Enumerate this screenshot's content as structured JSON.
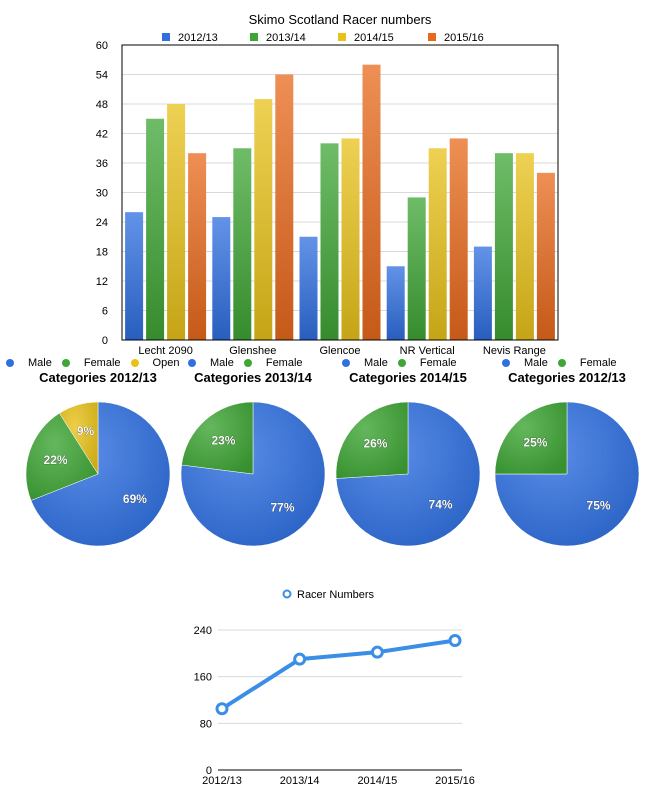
{
  "chart_data": [
    {
      "type": "bar",
      "title": "Skimo Scotland Racer numbers",
      "categories": [
        "Lecht 2090",
        "Glenshee",
        "Glencoe",
        "NR Vertical",
        "Nevis Range"
      ],
      "series": [
        {
          "name": "2012/13",
          "color": "#2f6fe0",
          "values": [
            26,
            25,
            21,
            15,
            19
          ]
        },
        {
          "name": "2013/14",
          "color": "#3fa535",
          "values": [
            45,
            39,
            40,
            29,
            38
          ]
        },
        {
          "name": "2014/15",
          "color": "#e8c21a",
          "values": [
            48,
            49,
            41,
            39,
            38
          ]
        },
        {
          "name": "2015/16",
          "color": "#e8691c",
          "values": [
            38,
            54,
            56,
            41,
            34
          ]
        }
      ],
      "ylim": [
        0,
        60
      ],
      "yticks": [
        "0",
        "6",
        "12",
        "18",
        "24",
        "30",
        "36",
        "42",
        "48",
        "54",
        "60"
      ],
      "legend": "top"
    },
    {
      "type": "pie",
      "title": "Categories 2012/13",
      "legend": [
        {
          "label": "Male",
          "color": "#2f6fe0"
        },
        {
          "label": "Female",
          "color": "#3fa535"
        },
        {
          "label": "Open",
          "color": "#e8c21a"
        }
      ],
      "slices": [
        {
          "label": "Male",
          "value": 69,
          "text": "69%",
          "color": "#2f6fe0"
        },
        {
          "label": "Female",
          "value": 22,
          "text": "22%",
          "color": "#3fa535"
        },
        {
          "label": "Open",
          "value": 9,
          "text": "9%",
          "color": "#e8c21a"
        }
      ]
    },
    {
      "type": "pie",
      "title": "Categories 2013/14",
      "legend": [
        {
          "label": "Male",
          "color": "#2f6fe0"
        },
        {
          "label": "Female",
          "color": "#3fa535"
        }
      ],
      "slices": [
        {
          "label": "Male",
          "value": 77,
          "text": "77%",
          "color": "#2f6fe0"
        },
        {
          "label": "Female",
          "value": 23,
          "text": "23%",
          "color": "#3fa535"
        }
      ]
    },
    {
      "type": "pie",
      "title": "Categories 2014/15",
      "legend": [
        {
          "label": "Male",
          "color": "#2f6fe0"
        },
        {
          "label": "Female",
          "color": "#3fa535"
        }
      ],
      "slices": [
        {
          "label": "Male",
          "value": 74,
          "text": "74%",
          "color": "#2f6fe0"
        },
        {
          "label": "Female",
          "value": 26,
          "text": "26%",
          "color": "#3fa535"
        }
      ]
    },
    {
      "type": "pie",
      "title": "Categories 2012/13",
      "legend": [
        {
          "label": "Male",
          "color": "#2f6fe0"
        },
        {
          "label": "Female",
          "color": "#3fa535"
        }
      ],
      "slices": [
        {
          "label": "Male",
          "value": 75,
          "text": "75%",
          "color": "#2f6fe0"
        },
        {
          "label": "Female",
          "value": 25,
          "text": "25%",
          "color": "#3fa535"
        }
      ]
    },
    {
      "type": "line",
      "title": "",
      "categories": [
        "2012/13",
        "2013/14",
        "2014/15",
        "2015/16"
      ],
      "series": [
        {
          "name": "Racer Numbers",
          "color": "#3a8ee6",
          "values": [
            105,
            190,
            202,
            222
          ]
        }
      ],
      "ylim": [
        0,
        240
      ],
      "yticks": [
        "0",
        "80",
        "160",
        "240"
      ],
      "legend": "top"
    }
  ]
}
